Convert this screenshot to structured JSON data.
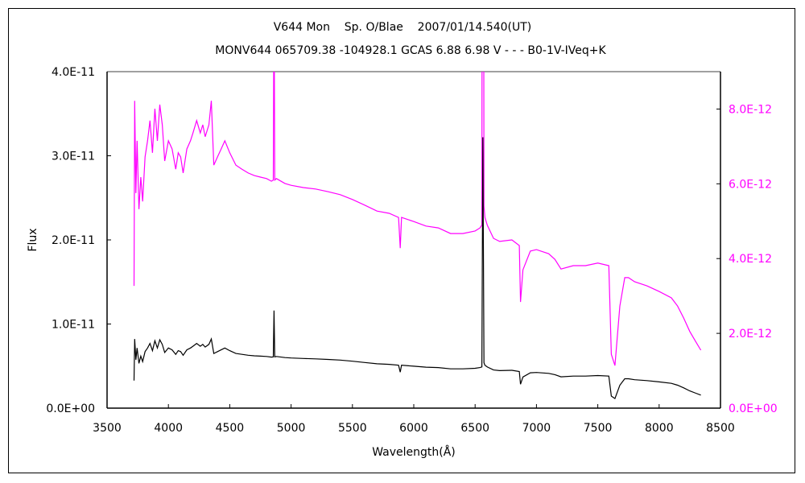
{
  "chart_data": {
    "type": "line",
    "title": "V644 Mon    Sp. O/Blae    2007/01/14.540(UT)",
    "subtitle": "MONV644 065709.38 -104928.1 GCAS 6.88 6.98 V - - - B0-1V-IVeq+K",
    "xlabel": "Wavelength(Å)",
    "ylabel": "Flux",
    "xlim": [
      3500,
      8500
    ],
    "ylim_left": [
      0,
      4e-11
    ],
    "ylim_right": [
      0,
      9e-12
    ],
    "x_ticks": [
      "3500",
      "4000",
      "4500",
      "5000",
      "5500",
      "6000",
      "6500",
      "7000",
      "7500",
      "8000",
      "8500"
    ],
    "y_ticks_left": [
      "0.0E+00",
      "1.0E-11",
      "2.0E-11",
      "3.0E-11",
      "4.0E-11"
    ],
    "y_ticks_right": [
      "0.0E+00",
      "2.0E-12",
      "4.0E-12",
      "6.0E-12",
      "8.0E-12"
    ],
    "grid": false,
    "legend": "none",
    "series": [
      {
        "axis": "left",
        "color": "#000000"
      },
      {
        "axis": "right",
        "color": "#ff00ff"
      }
    ],
    "wavelength": [
      3720,
      3725,
      3735,
      3745,
      3760,
      3775,
      3790,
      3810,
      3830,
      3850,
      3870,
      3890,
      3910,
      3930,
      3950,
      3970,
      4000,
      4030,
      4060,
      4080,
      4100,
      4120,
      4150,
      4180,
      4200,
      4230,
      4260,
      4280,
      4300,
      4330,
      4350,
      4370,
      4400,
      4430,
      4460,
      4500,
      4550,
      4600,
      4650,
      4700,
      4750,
      4800,
      4840,
      4855,
      4861,
      4867,
      4880,
      4950,
      5000,
      5100,
      5200,
      5300,
      5400,
      5500,
      5600,
      5700,
      5800,
      5876,
      5890,
      5900,
      6000,
      6100,
      6200,
      6300,
      6400,
      6500,
      6540,
      6555,
      6563,
      6572,
      6580,
      6600,
      6650,
      6700,
      6800,
      6860,
      6870,
      6890,
      6950,
      7000,
      7100,
      7150,
      7200,
      7300,
      7400,
      7500,
      7590,
      7610,
      7640,
      7680,
      7720,
      7750,
      7800,
      7900,
      8000,
      8100,
      8150,
      8200,
      8250,
      8300,
      8340
    ],
    "flux": [
      3.27e-12,
      8.22e-12,
      5.75e-12,
      7.15e-12,
      5.32e-12,
      6.18e-12,
      5.53e-12,
      6.72e-12,
      7.15e-12,
      7.69e-12,
      6.83e-12,
      8.01e-12,
      7.15e-12,
      8.12e-12,
      7.58e-12,
      6.61e-12,
      7.15e-12,
      6.93e-12,
      6.39e-12,
      6.83e-12,
      6.72e-12,
      6.29e-12,
      6.93e-12,
      7.15e-12,
      7.36e-12,
      7.69e-12,
      7.36e-12,
      7.58e-12,
      7.26e-12,
      7.58e-12,
      8.22e-12,
      6.5e-12,
      6.72e-12,
      6.93e-12,
      7.15e-12,
      6.83e-12,
      6.5e-12,
      6.39e-12,
      6.29e-12,
      6.22e-12,
      6.18e-12,
      6.14e-12,
      6.07e-12,
      6.1e-12,
      1.16e-11,
      6.1e-12,
      6.14e-12,
      6.01e-12,
      5.96e-12,
      5.9e-12,
      5.86e-12,
      5.79e-12,
      5.71e-12,
      5.58e-12,
      5.43e-12,
      5.27e-12,
      5.21e-12,
      5.1e-12,
      4.28e-12,
      5.1e-12,
      4.99e-12,
      4.87e-12,
      4.82e-12,
      4.67e-12,
      4.67e-12,
      4.74e-12,
      4.82e-12,
      4.9e-12,
      3.22e-11,
      5.4e-12,
      5.1e-12,
      4.89e-12,
      4.54e-12,
      4.46e-12,
      4.5e-12,
      4.35e-12,
      2.84e-12,
      3.7e-12,
      4.2e-12,
      4.24e-12,
      4.13e-12,
      3.98e-12,
      3.72e-12,
      3.81e-12,
      3.81e-12,
      3.88e-12,
      3.81e-12,
      1.44e-12,
      1.14e-12,
      2.73e-12,
      3.49e-12,
      3.49e-12,
      3.38e-12,
      3.27e-12,
      3.12e-12,
      2.95e-12,
      2.73e-12,
      2.41e-12,
      2.05e-12,
      1.77e-12,
      1.55e-12
    ]
  }
}
